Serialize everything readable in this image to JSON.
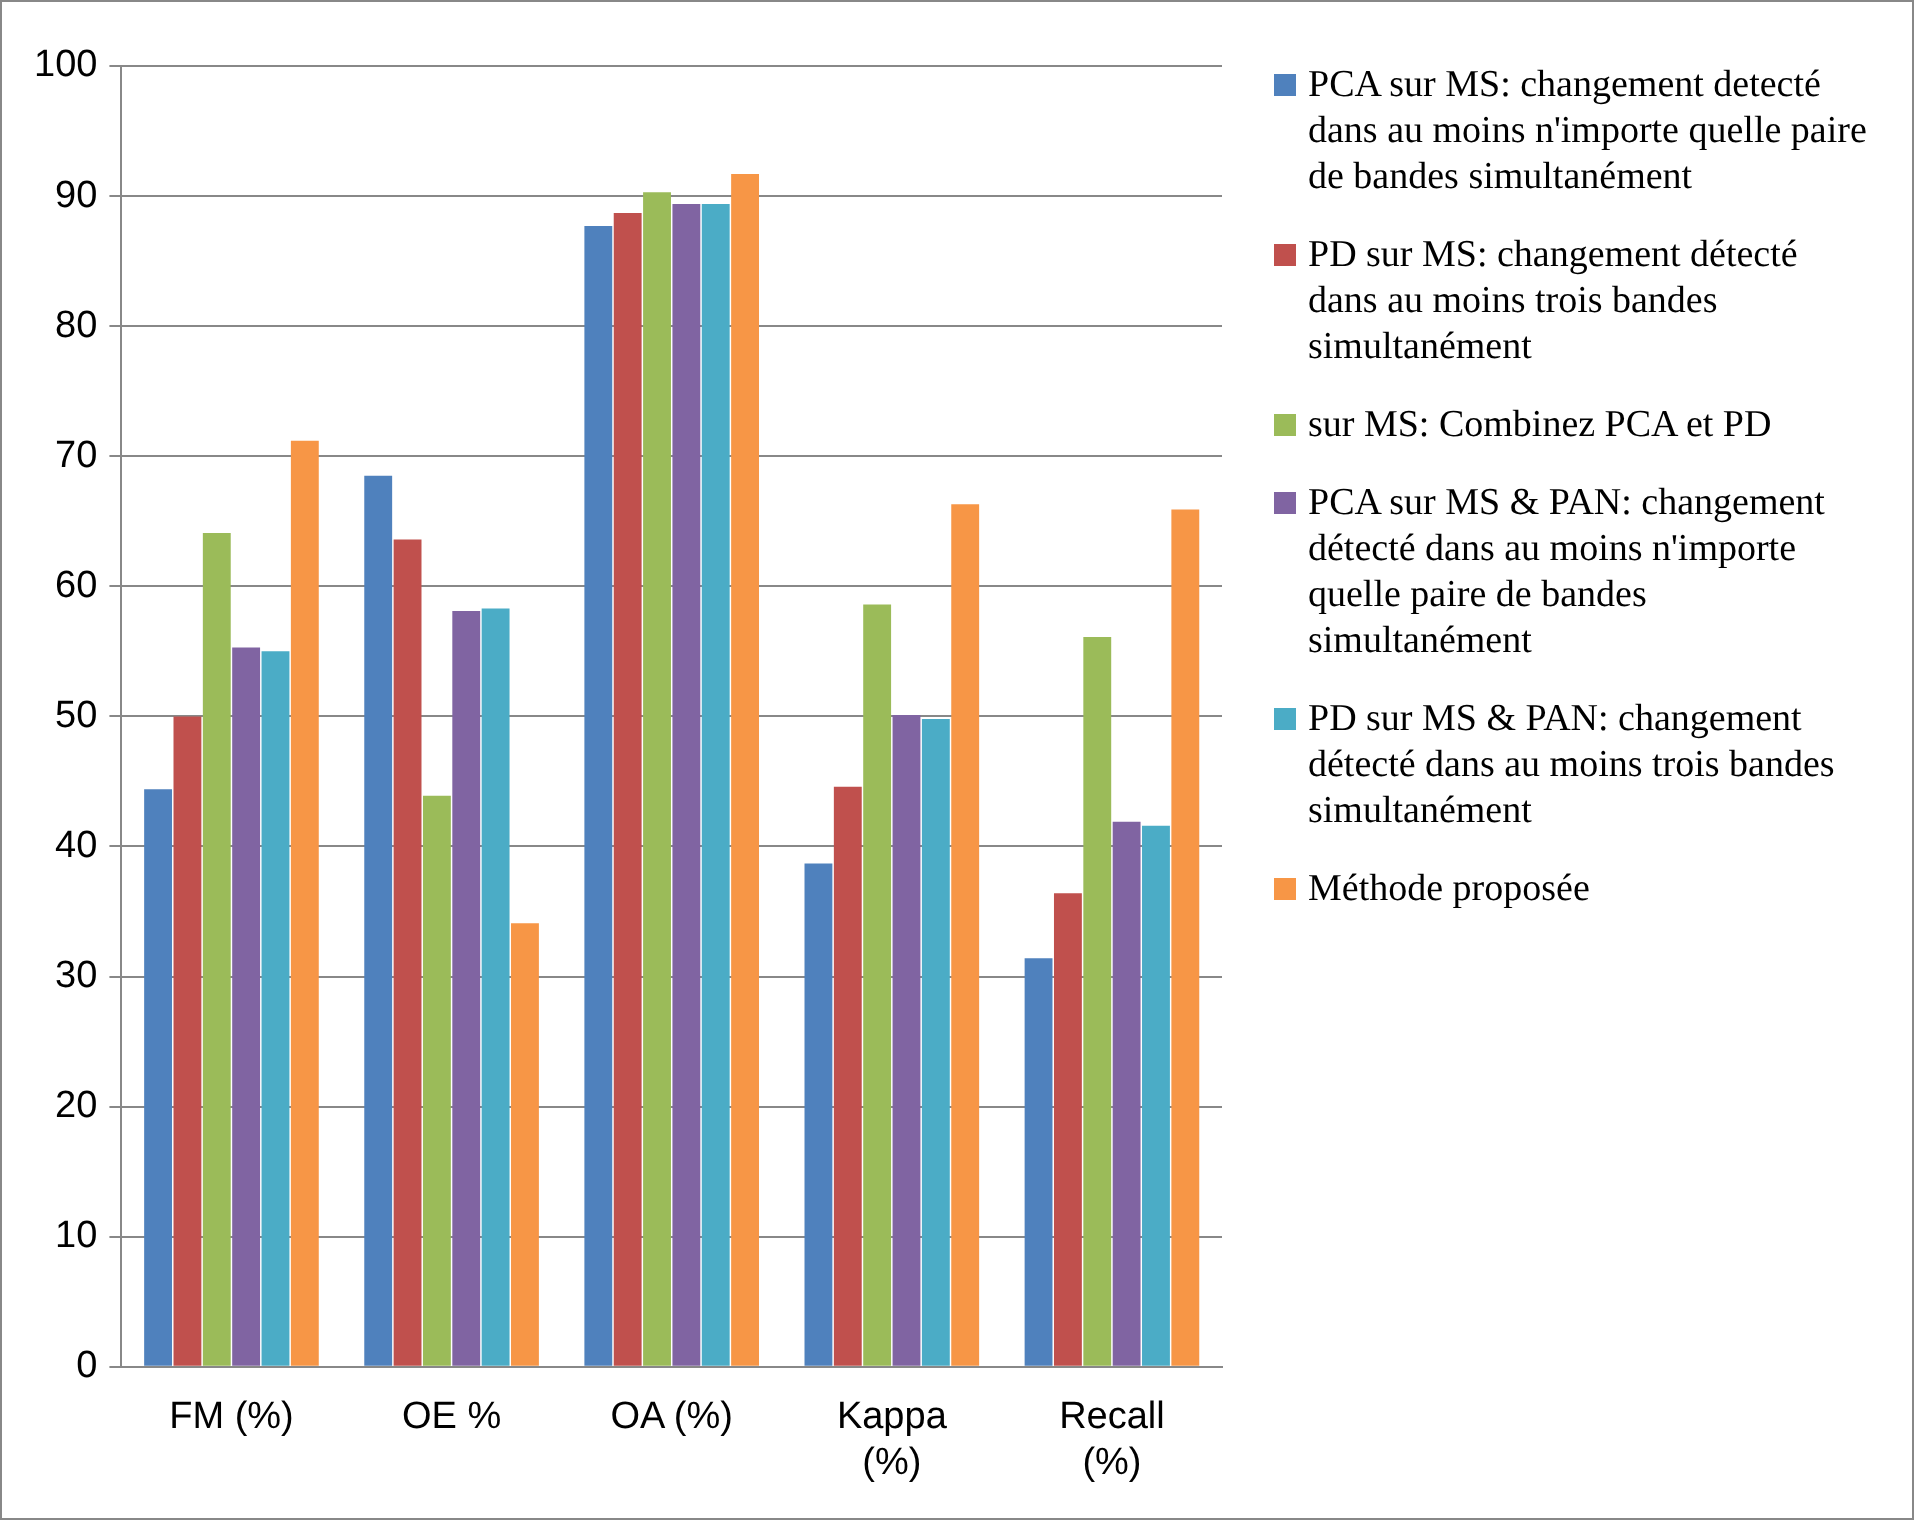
{
  "chart_data": {
    "type": "bar",
    "categories": [
      "FM (%)",
      "OE %",
      "OA (%)",
      "Kappa (%)",
      "Recall (%)"
    ],
    "series": [
      {
        "name": "PCA sur MS: changement detecté dans au moins n'importe quelle paire de bandes simultanément",
        "color": "#4f81bd",
        "values": [
          44.4,
          68.5,
          87.7,
          38.7,
          31.4
        ]
      },
      {
        "name": "PD sur MS: changement détecté dans au moins trois bandes simultanément",
        "color": "#c0504d",
        "values": [
          50.0,
          63.6,
          88.7,
          44.6,
          36.4
        ]
      },
      {
        "name": "sur MS: Combinez PCA et PD",
        "color": "#9bbb59",
        "values": [
          64.1,
          43.9,
          90.3,
          58.6,
          56.1
        ]
      },
      {
        "name": "PCA sur MS & PAN: changement détecté dans au moins n'importe quelle paire de bandes simultanément",
        "color": "#8064a2",
        "values": [
          55.3,
          58.1,
          89.4,
          50.1,
          41.9
        ]
      },
      {
        "name": "PD sur MS & PAN: changement détecté dans au moins trois bandes simultanément",
        "color": "#4bacc6",
        "values": [
          55.0,
          58.3,
          89.4,
          49.8,
          41.6
        ]
      },
      {
        "name": "Méthode proposée",
        "color": "#f79646",
        "values": [
          71.2,
          34.1,
          91.7,
          66.3,
          65.9
        ]
      }
    ],
    "ylim": [
      0,
      100
    ],
    "yticks": [
      0,
      10,
      20,
      30,
      40,
      50,
      60,
      70,
      80,
      90,
      100
    ],
    "grid": "y",
    "legend": "right"
  }
}
